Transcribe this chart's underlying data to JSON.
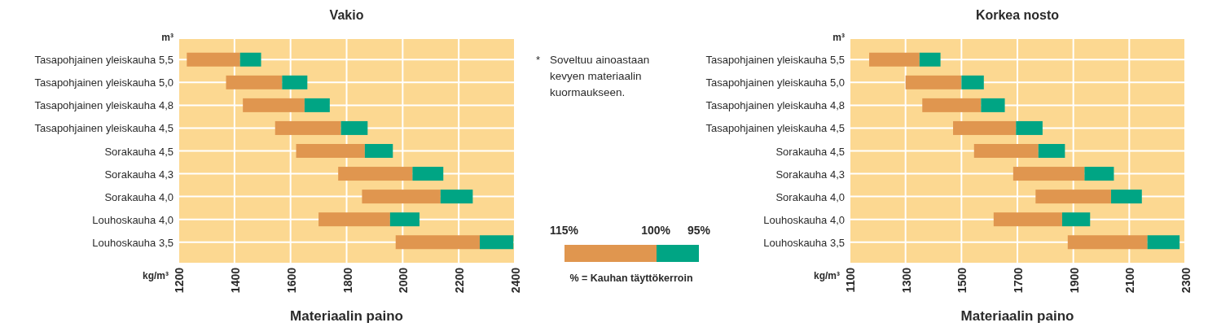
{
  "chart_data": [
    {
      "type": "bar",
      "title": "Vakio",
      "xlabel": "Materiaalin paino",
      "ylabel": "m³",
      "annotations": [
        "kg/m³"
      ],
      "orientation": "horizontal",
      "grid": true,
      "categories": [
        "Tasapohjainen yleiskauha 5,5",
        "Tasapohjainen yleiskauha 5,0",
        "Tasapohjainen yleiskauha 4,8",
        "Tasapohjainen yleiskauha 4,5",
        "Sorakauha 4,5",
        "Sorakauha 4,3",
        "Sorakauha 4,0",
        "Louhoskauha 4,0",
        "Louhoskauha 3,5"
      ],
      "series": [
        {
          "color": "#e0964f",
          "base": [
            1230,
            1370,
            1430,
            1545,
            1620,
            1770,
            1855,
            1700,
            1975
          ],
          "values": [
            190,
            200,
            220,
            235,
            245,
            265,
            280,
            255,
            300
          ]
        },
        {
          "color": "#00a584",
          "base": [
            1420,
            1570,
            1650,
            1780,
            1865,
            2035,
            2135,
            1955,
            2275
          ],
          "values": [
            75,
            90,
            90,
            95,
            100,
            110,
            115,
            105,
            120
          ]
        }
      ],
      "xlim": [
        1200,
        2400
      ],
      "xticks": [
        1200,
        1400,
        1600,
        1800,
        2000,
        2200,
        2400
      ]
    },
    {
      "type": "other",
      "annotations": [
        "*",
        "Soveltuu ainoastaan kevyen materiaalin kuormaukseen.",
        "115%",
        "100%",
        "95%",
        "% = Kauhan täyttökerroin"
      ],
      "colors": [
        "#e0964f",
        "#00a584"
      ]
    },
    {
      "type": "bar",
      "title": "Korkea nosto",
      "xlabel": "Materiaalin paino",
      "ylabel": "m³",
      "annotations": [
        "kg/m³"
      ],
      "orientation": "horizontal",
      "grid": true,
      "categories": [
        "Tasapohjainen yleiskauha 5,5",
        "Tasapohjainen yleiskauha 5,0",
        "Tasapohjainen yleiskauha 4,8",
        "Tasapohjainen yleiskauha 4,5",
        "Sorakauha 4,5",
        "Sorakauha 4,3",
        "Sorakauha 4,0",
        "Louhoskauha 4,0",
        "Louhoskauha 3,5"
      ],
      "series": [
        {
          "color": "#e0964f",
          "base": [
            1170,
            1300,
            1360,
            1470,
            1545,
            1685,
            1765,
            1615,
            1880
          ],
          "values": [
            180,
            200,
            210,
            225,
            230,
            255,
            270,
            245,
            285
          ]
        },
        {
          "color": "#00a584",
          "base": [
            1350,
            1500,
            1570,
            1695,
            1775,
            1940,
            2035,
            1860,
            2165
          ],
          "values": [
            75,
            80,
            85,
            95,
            95,
            105,
            110,
            100,
            115
          ]
        }
      ],
      "xlim": [
        1100,
        2300
      ],
      "xticks": [
        1100,
        1300,
        1500,
        1700,
        1900,
        2100,
        2300
      ]
    }
  ]
}
